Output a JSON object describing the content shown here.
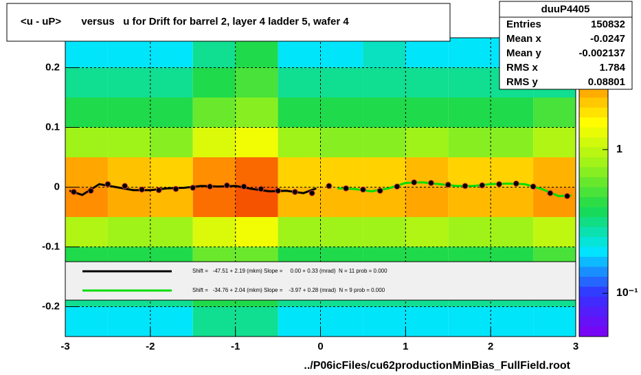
{
  "chart_data": {
    "type": "heatmap",
    "title": "<u - uP>       versus   u for Drift for barrel 2, layer 4 ladder 5, wafer 4",
    "footer": "../P06icFiles/cu62productionMinBias_FullField.root",
    "xlim": [
      -3,
      3
    ],
    "ylim": [
      -0.25,
      0.25
    ],
    "xticks": [
      -3,
      -2,
      -1,
      0,
      1,
      2,
      3
    ],
    "yticks": [
      -0.2,
      -0.1,
      0,
      0.1,
      0.2
    ],
    "grid": true,
    "zlog": true,
    "zlim": [
      0.05,
      6
    ],
    "zticks": [
      {
        "value": 0.1,
        "label": "10⁻¹"
      },
      1
    ],
    "xbins": [
      -3,
      -2.5,
      -2,
      -1.5,
      -1,
      -0.5,
      0,
      0.5,
      1,
      1.5,
      2,
      2.5,
      3
    ],
    "ybins": [
      -0.25,
      -0.2,
      -0.15,
      -0.1,
      -0.05,
      0,
      0.05,
      0.1,
      0.15,
      0.2,
      0.25
    ],
    "z": [
      [
        0.2,
        0.2,
        0.2,
        0.3,
        0.3,
        0.2,
        0.2,
        0.2,
        0.2,
        0.2,
        0.2,
        0.2
      ],
      [
        0.3,
        0.3,
        0.3,
        0.4,
        0.4,
        0.3,
        0.3,
        0.3,
        0.3,
        0.3,
        0.3,
        0.3
      ],
      [
        0.4,
        0.4,
        0.4,
        0.6,
        0.6,
        0.4,
        0.4,
        0.4,
        0.4,
        0.4,
        0.4,
        0.5
      ],
      [
        0.9,
        0.8,
        0.8,
        1.2,
        1.4,
        0.8,
        0.8,
        0.8,
        0.9,
        0.8,
        0.8,
        1.0
      ],
      [
        3.0,
        2.5,
        2.3,
        3.5,
        4.0,
        2.3,
        2.3,
        2.3,
        2.6,
        2.3,
        2.3,
        2.8
      ],
      [
        2.6,
        2.2,
        2.0,
        3.0,
        3.6,
        2.0,
        2.0,
        2.0,
        2.3,
        2.0,
        2.0,
        2.4
      ],
      [
        0.8,
        0.8,
        0.7,
        1.2,
        1.4,
        0.8,
        0.7,
        0.7,
        0.8,
        0.7,
        0.7,
        0.9
      ],
      [
        0.4,
        0.4,
        0.4,
        0.6,
        0.7,
        0.4,
        0.4,
        0.4,
        0.4,
        0.4,
        0.4,
        0.5
      ],
      [
        0.3,
        0.3,
        0.3,
        0.4,
        0.5,
        0.3,
        0.3,
        0.3,
        0.3,
        0.3,
        0.3,
        0.3
      ],
      [
        0.2,
        0.2,
        0.2,
        0.3,
        0.4,
        0.2,
        0.2,
        0.25,
        0.2,
        0.2,
        0.2,
        0.2
      ]
    ],
    "points": {
      "x": [
        -2.9,
        -2.7,
        -2.5,
        -2.3,
        -2.1,
        -1.9,
        -1.7,
        -1.5,
        -1.3,
        -1.1,
        -0.9,
        -0.7,
        -0.5,
        -0.3,
        -0.1,
        0.1,
        0.3,
        0.5,
        0.7,
        0.9,
        1.1,
        1.3,
        1.5,
        1.7,
        1.9,
        2.1,
        2.3,
        2.5,
        2.7,
        2.9
      ],
      "y": [
        -0.008,
        -0.006,
        0.005,
        0.002,
        -0.004,
        -0.005,
        -0.003,
        -0.001,
        0.001,
        0.003,
        0.001,
        -0.003,
        -0.006,
        -0.008,
        -0.01,
        0.002,
        -0.002,
        -0.004,
        -0.006,
        0.001,
        0.008,
        0.007,
        0.004,
        0.002,
        0.003,
        0.005,
        0.006,
        0.001,
        -0.01,
        -0.015
      ]
    },
    "series": [
      {
        "name": "Shift =   -47.51 + 2.19 (mkm) Slope =     0.00 + 0.33 (mrad)  N = 11 prob = 0.000",
        "color": "#000000",
        "x": [
          -2.95,
          -2.8,
          -2.6,
          -2.4,
          -2.2,
          -2.0,
          -1.8,
          -1.6,
          -1.4,
          -1.2,
          -1.0,
          -0.8,
          -0.6,
          -0.4,
          -0.2,
          -0.05
        ],
        "values": [
          -0.006,
          -0.013,
          0.005,
          0.0,
          -0.005,
          -0.005,
          -0.002,
          -0.001,
          0.002,
          0.001,
          0.002,
          -0.003,
          -0.007,
          -0.006,
          -0.01,
          -0.002
        ]
      },
      {
        "name": "Shift =   -34.76 + 2.04 (mkm) Slope =    -3.97 + 0.28 (mrad)  N = 9 prob = 0.000",
        "color": "#00dd00",
        "x": [
          0.2,
          0.4,
          0.6,
          0.8,
          1.0,
          1.2,
          1.4,
          1.6,
          1.8,
          2.0,
          2.2,
          2.4,
          2.6,
          2.8,
          2.95
        ],
        "values": [
          -0.002,
          -0.003,
          -0.007,
          -0.002,
          0.007,
          0.008,
          0.005,
          0.002,
          0.002,
          0.005,
          0.006,
          0.005,
          -0.003,
          -0.015,
          -0.014
        ]
      }
    ],
    "stats": {
      "title": "duuP4405",
      "rows": [
        [
          "Entries",
          "150832"
        ],
        [
          "Mean x",
          "-0.0247"
        ],
        [
          "Mean y",
          "-0.002137"
        ],
        [
          "RMS x",
          "1.784"
        ],
        [
          "RMS y",
          "0.08801"
        ]
      ]
    }
  }
}
